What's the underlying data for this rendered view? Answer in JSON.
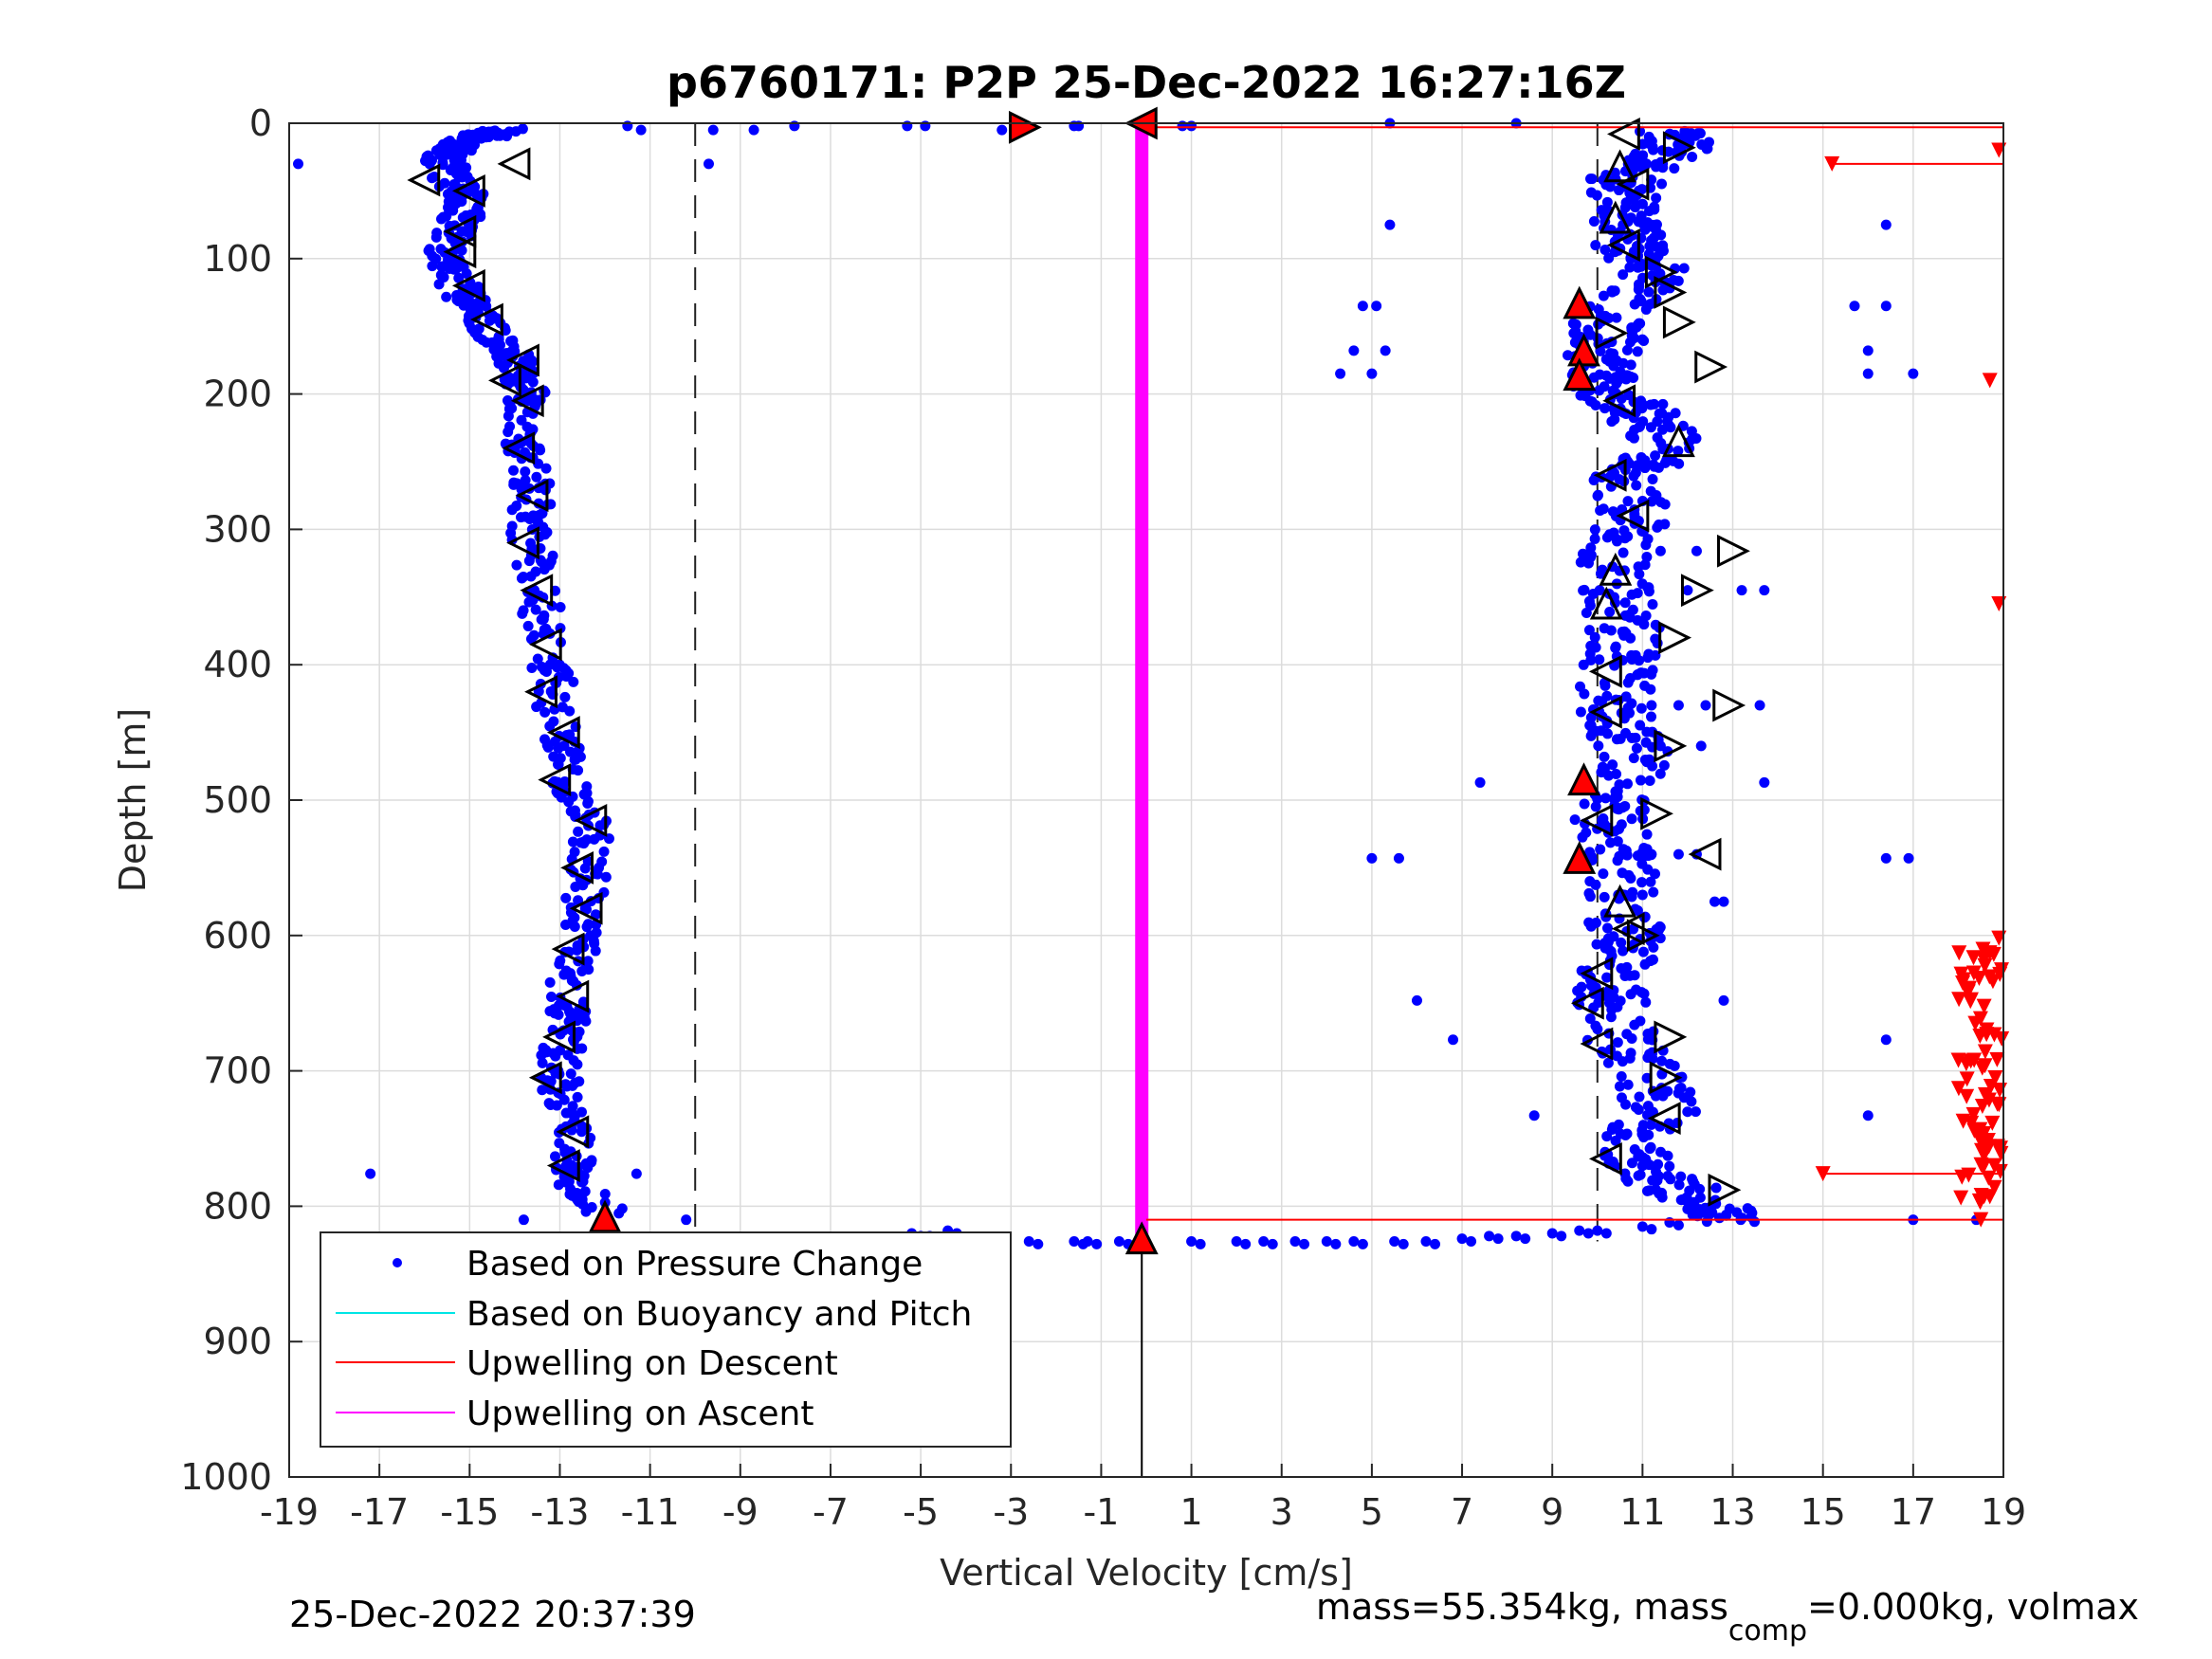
{
  "chart_data": {
    "type": "scatter",
    "title": "p6760171: P2P 25-Dec-2022 16:27:16Z",
    "xlabel": "Vertical Velocity [cm/s]",
    "ylabel": "Depth [m]",
    "xlim": [
      -19,
      19
    ],
    "ylim": [
      0,
      1000
    ],
    "y_reversed": true,
    "grid": true,
    "legend_position": "bottom-left",
    "xticks": [
      "-19",
      "-17",
      "-15",
      "-13",
      "-11",
      "-9",
      "-7",
      "-5",
      "-3",
      "-1",
      "1",
      "3",
      "5",
      "7",
      "9",
      "11",
      "13",
      "15",
      "17",
      "19"
    ],
    "yticks": [
      "0",
      "100",
      "200",
      "300",
      "400",
      "500",
      "600",
      "700",
      "800",
      "900",
      "1000"
    ],
    "legend": [
      {
        "label": "Based on Pressure Change",
        "color": "#0000ff",
        "marker": "dot"
      },
      {
        "label": "Based on Buoyancy and Pitch",
        "color": "#00e5e5",
        "marker": "line"
      },
      {
        "label": "Upwelling on Descent",
        "color": "#ff0000",
        "marker": "line"
      },
      {
        "label": "Upwelling on Ascent",
        "color": "#ff00ff",
        "marker": "line"
      }
    ],
    "dashed_lines_x": [
      -10,
      10
    ],
    "descent_profile": [
      [
        -14.2,
        5
      ],
      [
        -14.8,
        10
      ],
      [
        -15.3,
        15
      ],
      [
        -15.6,
        25
      ],
      [
        -15.4,
        40
      ],
      [
        -15.0,
        55
      ],
      [
        -15.2,
        70
      ],
      [
        -15.5,
        90
      ],
      [
        -15.4,
        110
      ],
      [
        -15.1,
        130
      ],
      [
        -14.6,
        150
      ],
      [
        -14.1,
        170
      ],
      [
        -13.8,
        190
      ],
      [
        -13.7,
        210
      ],
      [
        -13.8,
        240
      ],
      [
        -13.6,
        270
      ],
      [
        -13.7,
        300
      ],
      [
        -13.5,
        340
      ],
      [
        -13.3,
        380
      ],
      [
        -13.1,
        420
      ],
      [
        -13.0,
        460
      ],
      [
        -12.7,
        490
      ],
      [
        -12.3,
        520
      ],
      [
        -12.4,
        560
      ],
      [
        -12.5,
        600
      ],
      [
        -12.8,
        630
      ],
      [
        -12.8,
        660
      ],
      [
        -13.0,
        690
      ],
      [
        -13.0,
        720
      ],
      [
        -12.7,
        750
      ],
      [
        -12.7,
        780
      ],
      [
        -12.0,
        805
      ]
    ],
    "ascent_profile": [
      [
        11.7,
        5
      ],
      [
        11.8,
        20
      ],
      [
        10.6,
        40
      ],
      [
        10.7,
        60
      ],
      [
        10.6,
        80
      ],
      [
        10.8,
        95
      ],
      [
        11.4,
        115
      ],
      [
        10.2,
        140
      ],
      [
        10.3,
        160
      ],
      [
        10.0,
        180
      ],
      [
        10.4,
        200
      ],
      [
        11.0,
        215
      ],
      [
        11.7,
        240
      ],
      [
        10.6,
        260
      ],
      [
        10.9,
        290
      ],
      [
        10.4,
        320
      ],
      [
        10.5,
        350
      ],
      [
        10.6,
        380
      ],
      [
        10.4,
        410
      ],
      [
        10.4,
        440
      ],
      [
        10.9,
        470
      ],
      [
        10.3,
        500
      ],
      [
        10.3,
        530
      ],
      [
        10.6,
        560
      ],
      [
        10.6,
        590
      ],
      [
        10.6,
        610
      ],
      [
        10.3,
        640
      ],
      [
        10.4,
        670
      ],
      [
        11.2,
        700
      ],
      [
        11.4,
        730
      ],
      [
        10.6,
        760
      ],
      [
        11.4,
        780
      ],
      [
        12.6,
        800
      ],
      [
        12.8,
        810
      ]
    ],
    "surface_descent_points": [
      [
        -11.5,
        2
      ],
      [
        -11.2,
        5
      ],
      [
        -9.6,
        5
      ],
      [
        -8.7,
        5
      ],
      [
        -7.8,
        2
      ],
      [
        -5.3,
        2
      ],
      [
        -4.9,
        2
      ],
      [
        -3.2,
        5
      ],
      [
        -1.6,
        2
      ],
      [
        -1.5,
        2
      ],
      [
        0.8,
        2
      ],
      [
        1.0,
        2
      ],
      [
        5.4,
        0
      ],
      [
        8.2,
        0
      ],
      [
        -18.8,
        30
      ],
      [
        -9.7,
        30
      ]
    ],
    "bottom_points": [
      [
        -5.2,
        820
      ],
      [
        -4.8,
        822
      ],
      [
        -4.4,
        818
      ],
      [
        -4.1,
        824
      ],
      [
        -3.4,
        825
      ],
      [
        -2.6,
        826
      ],
      [
        -1.6,
        826
      ],
      [
        -1.3,
        826
      ],
      [
        -0.6,
        826
      ],
      [
        1.0,
        826
      ],
      [
        2.0,
        826
      ],
      [
        2.6,
        826
      ],
      [
        3.3,
        826
      ],
      [
        4.0,
        826
      ],
      [
        4.6,
        826
      ],
      [
        5.5,
        826
      ],
      [
        6.2,
        826
      ],
      [
        7.0,
        824
      ],
      [
        7.6,
        822
      ],
      [
        8.2,
        822
      ],
      [
        9.0,
        820
      ],
      [
        9.6,
        818
      ],
      [
        10.0,
        818
      ],
      [
        11.0,
        815
      ],
      [
        11.6,
        812
      ]
    ],
    "scattered_points": [
      [
        4.8,
        135
      ],
      [
        5.1,
        135
      ],
      [
        4.6,
        168
      ],
      [
        5.3,
        168
      ],
      [
        4.3,
        185
      ],
      [
        5.0,
        185
      ],
      [
        5.4,
        75
      ],
      [
        16.4,
        75
      ],
      [
        15.7,
        135
      ],
      [
        16.4,
        135
      ],
      [
        16.0,
        168
      ],
      [
        16.0,
        185
      ],
      [
        17.0,
        185
      ],
      [
        7.4,
        487
      ],
      [
        13.7,
        487
      ],
      [
        5.0,
        543
      ],
      [
        5.6,
        543
      ],
      [
        16.4,
        543
      ],
      [
        16.9,
        543
      ],
      [
        6.0,
        648
      ],
      [
        12.8,
        648
      ],
      [
        6.8,
        677
      ],
      [
        16.4,
        677
      ],
      [
        8.6,
        733
      ],
      [
        16.0,
        733
      ],
      [
        17.0,
        810
      ],
      [
        18.4,
        810
      ],
      [
        -17.2,
        776
      ],
      [
        -13.8,
        810
      ],
      [
        -11.3,
        776
      ],
      [
        -10.2,
        810
      ],
      [
        11.4,
        316
      ],
      [
        12.2,
        316
      ],
      [
        12.0,
        345
      ],
      [
        13.2,
        345
      ],
      [
        13.7,
        345
      ],
      [
        11.2,
        430
      ],
      [
        11.8,
        430
      ],
      [
        12.4,
        430
      ],
      [
        13.6,
        430
      ],
      [
        11.4,
        460
      ],
      [
        12.3,
        460
      ],
      [
        12.8,
        575
      ],
      [
        12.6,
        575
      ],
      [
        11.2,
        540
      ],
      [
        11.8,
        540
      ],
      [
        12.2,
        540
      ]
    ],
    "triangle_markers": [
      {
        "x": -16.0,
        "y": 42,
        "dir": "left",
        "fill": "open"
      },
      {
        "x": -14.0,
        "y": 30,
        "dir": "left",
        "fill": "open"
      },
      {
        "x": -15.0,
        "y": 50,
        "dir": "left",
        "fill": "open"
      },
      {
        "x": -15.2,
        "y": 80,
        "dir": "left",
        "fill": "open"
      },
      {
        "x": -15.2,
        "y": 95,
        "dir": "left",
        "fill": "open"
      },
      {
        "x": -15.0,
        "y": 120,
        "dir": "left",
        "fill": "open"
      },
      {
        "x": -14.6,
        "y": 145,
        "dir": "left",
        "fill": "open"
      },
      {
        "x": -13.8,
        "y": 175,
        "dir": "left",
        "fill": "open"
      },
      {
        "x": -14.2,
        "y": 190,
        "dir": "left",
        "fill": "open"
      },
      {
        "x": -13.7,
        "y": 205,
        "dir": "left",
        "fill": "open"
      },
      {
        "x": -13.9,
        "y": 240,
        "dir": "left",
        "fill": "open"
      },
      {
        "x": -13.6,
        "y": 275,
        "dir": "left",
        "fill": "open"
      },
      {
        "x": -13.8,
        "y": 310,
        "dir": "left",
        "fill": "open"
      },
      {
        "x": -13.5,
        "y": 345,
        "dir": "left",
        "fill": "open"
      },
      {
        "x": -13.3,
        "y": 385,
        "dir": "left",
        "fill": "open"
      },
      {
        "x": -13.4,
        "y": 420,
        "dir": "left",
        "fill": "open"
      },
      {
        "x": -12.9,
        "y": 450,
        "dir": "left",
        "fill": "open"
      },
      {
        "x": -13.1,
        "y": 485,
        "dir": "left",
        "fill": "open"
      },
      {
        "x": -12.3,
        "y": 515,
        "dir": "left",
        "fill": "open"
      },
      {
        "x": -12.6,
        "y": 550,
        "dir": "left",
        "fill": "open"
      },
      {
        "x": -12.4,
        "y": 580,
        "dir": "left",
        "fill": "open"
      },
      {
        "x": -12.8,
        "y": 610,
        "dir": "left",
        "fill": "open"
      },
      {
        "x": -12.7,
        "y": 645,
        "dir": "left",
        "fill": "open"
      },
      {
        "x": -13.0,
        "y": 675,
        "dir": "left",
        "fill": "open"
      },
      {
        "x": -13.3,
        "y": 705,
        "dir": "left",
        "fill": "open"
      },
      {
        "x": -12.7,
        "y": 745,
        "dir": "left",
        "fill": "open"
      },
      {
        "x": -12.9,
        "y": 770,
        "dir": "left",
        "fill": "open"
      },
      {
        "x": -12.0,
        "y": 808,
        "dir": "up",
        "fill": "red"
      },
      {
        "x": -2.7,
        "y": 3,
        "dir": "right",
        "fill": "red"
      },
      {
        "x": -0.1,
        "y": 0,
        "dir": "left",
        "fill": "red"
      },
      {
        "x": -0.1,
        "y": 824,
        "dir": "up",
        "fill": "red"
      },
      {
        "x": 10.6,
        "y": 8,
        "dir": "left",
        "fill": "open"
      },
      {
        "x": 11.8,
        "y": 18,
        "dir": "right",
        "fill": "open"
      },
      {
        "x": 10.5,
        "y": 32,
        "dir": "up",
        "fill": "open"
      },
      {
        "x": 10.8,
        "y": 45,
        "dir": "left",
        "fill": "open"
      },
      {
        "x": 10.4,
        "y": 70,
        "dir": "up",
        "fill": "open"
      },
      {
        "x": 10.6,
        "y": 90,
        "dir": "left",
        "fill": "open"
      },
      {
        "x": 11.4,
        "y": 110,
        "dir": "right",
        "fill": "open"
      },
      {
        "x": 11.6,
        "y": 125,
        "dir": "right",
        "fill": "open"
      },
      {
        "x": 9.6,
        "y": 133,
        "dir": "up",
        "fill": "red"
      },
      {
        "x": 10.3,
        "y": 155,
        "dir": "right",
        "fill": "open"
      },
      {
        "x": 11.8,
        "y": 147,
        "dir": "right",
        "fill": "open"
      },
      {
        "x": 9.7,
        "y": 168,
        "dir": "up",
        "fill": "red"
      },
      {
        "x": 9.6,
        "y": 186,
        "dir": "up",
        "fill": "red"
      },
      {
        "x": 10.5,
        "y": 205,
        "dir": "left",
        "fill": "open"
      },
      {
        "x": 12.5,
        "y": 180,
        "dir": "right",
        "fill": "open"
      },
      {
        "x": 11.8,
        "y": 235,
        "dir": "up",
        "fill": "open"
      },
      {
        "x": 10.3,
        "y": 260,
        "dir": "left",
        "fill": "open"
      },
      {
        "x": 10.8,
        "y": 290,
        "dir": "left",
        "fill": "open"
      },
      {
        "x": 13.0,
        "y": 316,
        "dir": "right",
        "fill": "open"
      },
      {
        "x": 10.4,
        "y": 330,
        "dir": "up",
        "fill": "open"
      },
      {
        "x": 10.2,
        "y": 355,
        "dir": "up",
        "fill": "open"
      },
      {
        "x": 12.2,
        "y": 345,
        "dir": "right",
        "fill": "open"
      },
      {
        "x": 11.7,
        "y": 380,
        "dir": "right",
        "fill": "open"
      },
      {
        "x": 10.2,
        "y": 405,
        "dir": "left",
        "fill": "open"
      },
      {
        "x": 10.2,
        "y": 435,
        "dir": "left",
        "fill": "open"
      },
      {
        "x": 12.9,
        "y": 430,
        "dir": "right",
        "fill": "open"
      },
      {
        "x": 11.6,
        "y": 460,
        "dir": "right",
        "fill": "open"
      },
      {
        "x": 9.7,
        "y": 485,
        "dir": "up",
        "fill": "red"
      },
      {
        "x": 10.0,
        "y": 515,
        "dir": "left",
        "fill": "open"
      },
      {
        "x": 11.3,
        "y": 510,
        "dir": "right",
        "fill": "open"
      },
      {
        "x": 9.6,
        "y": 543,
        "dir": "up",
        "fill": "red"
      },
      {
        "x": 12.4,
        "y": 540,
        "dir": "left",
        "fill": "open"
      },
      {
        "x": 10.5,
        "y": 575,
        "dir": "up",
        "fill": "open"
      },
      {
        "x": 10.7,
        "y": 595,
        "dir": "left",
        "fill": "open"
      },
      {
        "x": 11.0,
        "y": 600,
        "dir": "right",
        "fill": "open"
      },
      {
        "x": 10.0,
        "y": 628,
        "dir": "left",
        "fill": "open"
      },
      {
        "x": 9.8,
        "y": 650,
        "dir": "left",
        "fill": "open"
      },
      {
        "x": 11.6,
        "y": 675,
        "dir": "right",
        "fill": "open"
      },
      {
        "x": 10.0,
        "y": 680,
        "dir": "left",
        "fill": "open"
      },
      {
        "x": 11.5,
        "y": 705,
        "dir": "right",
        "fill": "open"
      },
      {
        "x": 11.5,
        "y": 735,
        "dir": "left",
        "fill": "open"
      },
      {
        "x": 10.2,
        "y": 765,
        "dir": "left",
        "fill": "open"
      },
      {
        "x": 12.8,
        "y": 788,
        "dir": "right",
        "fill": "open"
      }
    ],
    "upwelling_descent_segments": [
      [
        [
          0,
          3
        ],
        [
          19,
          3
        ]
      ],
      [
        [
          15.2,
          30
        ],
        [
          19,
          30
        ]
      ],
      [
        [
          15.0,
          776
        ],
        [
          19,
          776
        ]
      ],
      [
        [
          0,
          810
        ],
        [
          19,
          810
        ]
      ]
    ],
    "upwelling_descent_markers": [
      [
        15.2,
        30
      ],
      [
        18.9,
        20
      ],
      [
        18.7,
        190
      ],
      [
        18.9,
        355
      ],
      [
        18.9,
        602
      ],
      [
        15.0,
        776
      ],
      [
        18.7,
        793
      ],
      [
        18.5,
        810
      ]
    ],
    "upwelling_ascent_x": -0.1,
    "upwelling_ascent_range": [
      0,
      824
    ],
    "black_vertical_line": {
      "x": -0.1,
      "y": [
        824,
        1000
      ]
    },
    "dashed_line_range": [
      0,
      826
    ]
  },
  "footer": {
    "timestamp": "25-Dec-2022 20:37:39",
    "mass_label": "mass=55.354kg, mass",
    "mass_sub": "comp",
    "mass_rest": "=0.000kg, volmax"
  }
}
